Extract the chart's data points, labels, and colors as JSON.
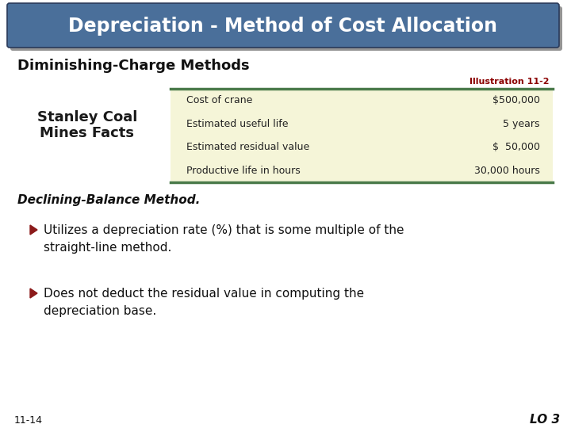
{
  "title": "Depreciation - Method of Cost Allocation",
  "title_bg": "#4a6f9a",
  "title_color": "#ffffff",
  "subtitle": "Diminishing-Charge Methods",
  "illustration_label": "Illustration 11-2",
  "illustration_color": "#8b0000",
  "table_label_line1": "Stanley Coal",
  "table_label_line2": "Mines Facts",
  "table_label_color": "#1a1a1a",
  "table_rows": [
    [
      "Cost of crane",
      "$500,000"
    ],
    [
      "Estimated useful life",
      "5 years"
    ],
    [
      "Estimated residual value",
      "$  50,000"
    ],
    [
      "Productive life in hours",
      "30,000 hours"
    ]
  ],
  "table_bg": "#f5f5d8",
  "table_border_color": "#4a7a4a",
  "section_title": "Declining-Balance Method.",
  "bullet_color": "#8b1a1a",
  "bullet1_line1": "Utilizes a depreciation rate (%) that is some multiple of the",
  "bullet1_line2": "straight-line method.",
  "bullet2_line1": "Does not deduct the residual value in computing the",
  "bullet2_line2": "depreciation base.",
  "footer_left": "11-14",
  "footer_right": "LO 3",
  "bg_color": "#ffffff"
}
